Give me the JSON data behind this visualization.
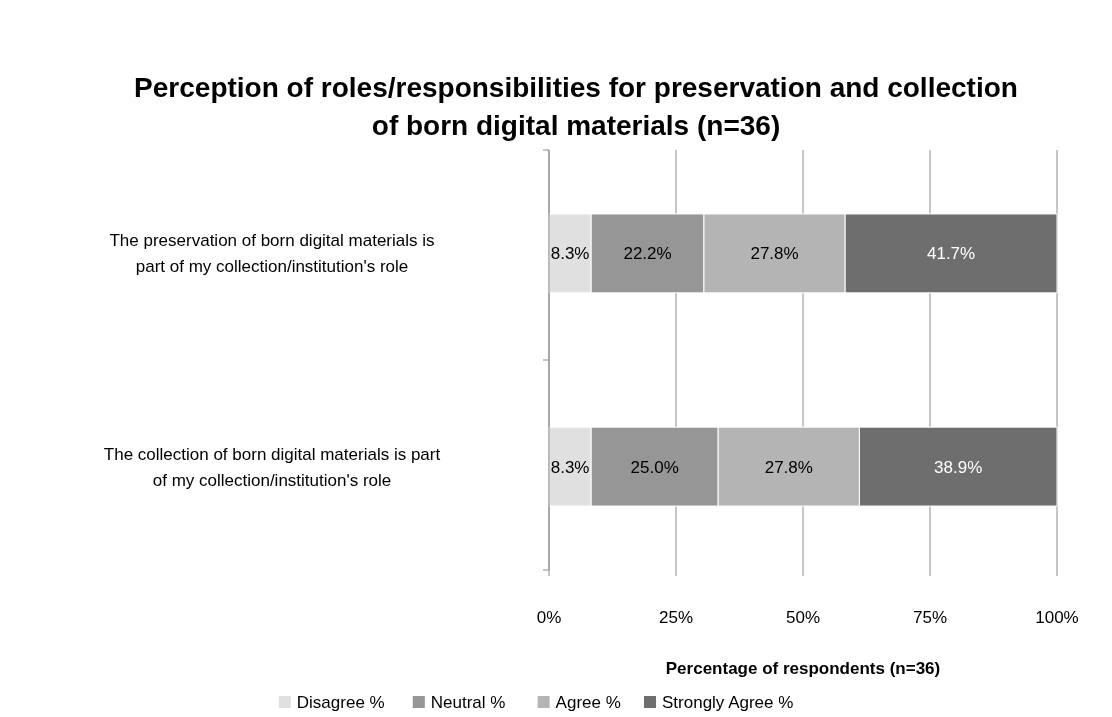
{
  "chart_data": {
    "type": "bar",
    "orientation": "horizontal",
    "stacked": true,
    "title": "Perception of roles/responsibilities for preservation and collection of born digital materials (n=36)",
    "xlabel": "Percentage of respondents (n=36)",
    "categories": [
      "The preservation of born digital materials is part of my collection/institution's role",
      "The collection of born digital materials is part of my collection/institution's role"
    ],
    "series": [
      {
        "name": "Disagree %",
        "color": "#e0e0e0",
        "values": [
          8.3,
          8.3
        ],
        "value_labels": [
          "8.3%",
          "8.3%"
        ]
      },
      {
        "name": "Neutral %",
        "color": "#969696",
        "values": [
          22.2,
          25.0
        ],
        "value_labels": [
          "22.2%",
          "25.0%"
        ]
      },
      {
        "name": "Agree %",
        "color": "#b4b4b4",
        "values": [
          27.8,
          27.8
        ],
        "value_labels": [
          "27.8%",
          "27.8%"
        ]
      },
      {
        "name": "Strongly Agree %",
        "color": "#6e6e6e",
        "values": [
          41.7,
          38.9
        ],
        "value_labels": [
          "41.7%",
          "38.9%"
        ]
      }
    ],
    "xlim": [
      0,
      100
    ],
    "xticks": [
      {
        "value": 0,
        "label": "0%"
      },
      {
        "value": 25,
        "label": "25%"
      },
      {
        "value": 50,
        "label": "50%"
      },
      {
        "value": 75,
        "label": "75%"
      },
      {
        "value": 100,
        "label": "100%"
      }
    ],
    "grid": "x",
    "legend": "bottom"
  }
}
